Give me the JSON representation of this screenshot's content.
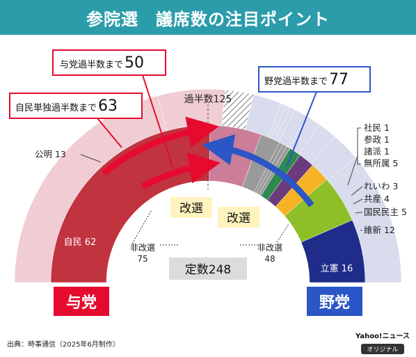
{
  "title": "参院選　議席数の注目ポイント",
  "chart_data": {
    "type": "semicircle-seat-chart",
    "total_label": "定数248",
    "majority_label": "過半数125",
    "series": [
      {
        "name": "自民",
        "label": "自民 62",
        "non_up": 62,
        "up": 52,
        "color": "#c0333f",
        "up_color": "#f0cdd3"
      },
      {
        "name": "公明",
        "label": "公明 13",
        "non_up": 13,
        "up": 14,
        "color": "#cc7d99",
        "up_color": "#f0cdd3"
      },
      {
        "name": "無所属",
        "label": "無所属 5",
        "non_up": 5,
        "up": 6,
        "color": "#9a9a9a",
        "up_color": "#d8dced"
      },
      {
        "name": "諸派",
        "label": "諸派 1",
        "non_up": 1,
        "up": 1,
        "color": "#9a9a9a",
        "up_color": "#d8dced"
      },
      {
        "name": "参政",
        "label": "参政 1",
        "non_up": 1,
        "up": 1,
        "color": "#9a9a9a",
        "up_color": "#d8dced"
      },
      {
        "name": "社民",
        "label": "社民 1",
        "non_up": 1,
        "up": 1,
        "color": "#9a9a9a",
        "up_color": "#d8dced"
      },
      {
        "name": "れいわ",
        "label": "れいわ 3",
        "non_up": 3,
        "up": 3,
        "color": "#2e8a4e",
        "up_color": "#d8dced"
      },
      {
        "name": "共産",
        "label": "共産 4",
        "non_up": 4,
        "up": 3,
        "color": "#6b3b7b",
        "up_color": "#d8dced"
      },
      {
        "name": "国民民主",
        "label": "国民民主 5",
        "non_up": 5,
        "up": 4,
        "color": "#f5b323",
        "up_color": "#d8dced"
      },
      {
        "name": "維新",
        "label": "維新 12",
        "non_up": 12,
        "up": 6,
        "color": "#8fbf28",
        "up_color": "#d8dced"
      },
      {
        "name": "立憲",
        "label": "立憲 16",
        "non_up": 16,
        "up": 28,
        "color": "#1f2c8a",
        "up_color": "#d8dced"
      }
    ],
    "vacant_up": 6,
    "non_up_labels": {
      "left_title": "非改選",
      "left_value": "75",
      "right_title": "非改選",
      "right_value": "48"
    },
    "up_label": "改選",
    "callouts": [
      {
        "text": "与党過半数まで",
        "number": "50",
        "color": "#e60a2f"
      },
      {
        "text": "自民単独過半数まで",
        "number": "63",
        "color": "#e60a2f"
      },
      {
        "text": "野党過半数まで",
        "number": "77",
        "color": "#2a56c6"
      }
    ],
    "blocs": {
      "ruling": "与党",
      "opposition": "野党"
    }
  },
  "footer": {
    "source": "出典：時事通信（2025年6月制作）",
    "brand_top": "Yahoo!ニュース",
    "brand_bottom": "オリジナル"
  },
  "colors": {
    "title_bar": "#2c9cab",
    "ruling": "#e60a2f",
    "opposition": "#2a56c6"
  }
}
